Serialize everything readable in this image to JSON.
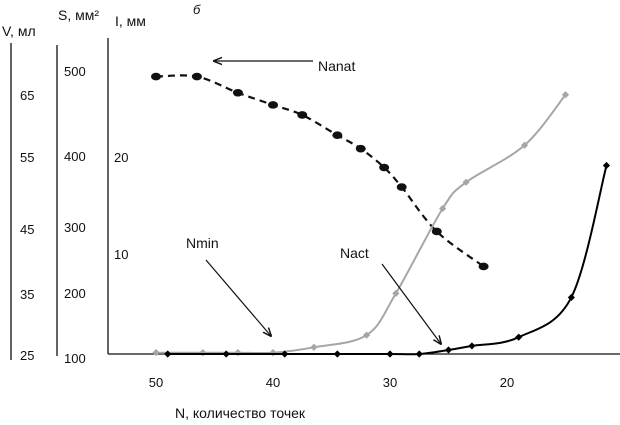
{
  "chart_data": {
    "type": "line",
    "panel_label": "б",
    "xlabel": "N, количество точек",
    "x_ticks": [
      50,
      40,
      30,
      20
    ],
    "xlim": [
      55,
      10
    ],
    "axes": [
      {
        "id": "V",
        "label": "V, мл",
        "ticks": [
          "25",
          "35",
          "45",
          "55",
          "65"
        ],
        "range": [
          25,
          70
        ]
      },
      {
        "id": "S",
        "label": "S, мм²",
        "ticks": [
          "100",
          "200",
          "300",
          "400",
          "500"
        ],
        "range": [
          100,
          520
        ]
      },
      {
        "id": "I",
        "label": "I, мм",
        "ticks": [
          "10",
          "20"
        ]
      }
    ],
    "series": [
      {
        "axis": "S",
        "style": "dashed",
        "color": "#111111",
        "marker": "circle",
        "x": [
          50,
          46.5,
          43,
          40,
          37.5,
          34.5,
          32.5,
          30.5,
          29,
          26,
          22
        ],
        "y": [
          512,
          512,
          488,
          470,
          455,
          425,
          405,
          377,
          348,
          282,
          230
        ]
      },
      {
        "axis": "S",
        "style": "solid",
        "color": "#a6a6a6",
        "marker": "diamond",
        "x": [
          50,
          46,
          43,
          40,
          36.5,
          32,
          29.5,
          25.5,
          23.5,
          18.5,
          15
        ],
        "y": [
          102,
          102,
          102,
          102,
          110,
          128,
          190,
          316,
          355,
          410,
          485
        ]
      },
      {
        "axis": "S",
        "style": "solid",
        "color": "#000000",
        "marker": "diamond",
        "x": [
          49,
          44,
          39,
          34.5,
          30,
          27.5,
          25,
          23,
          19,
          14.5,
          11.5
        ],
        "y": [
          100,
          100,
          100,
          100,
          100,
          100,
          106,
          112,
          125,
          184,
          380
        ]
      }
    ],
    "annotations": [
      {
        "text": "Nanat"
      },
      {
        "text": "Nmin"
      },
      {
        "text": "Nact"
      }
    ]
  }
}
